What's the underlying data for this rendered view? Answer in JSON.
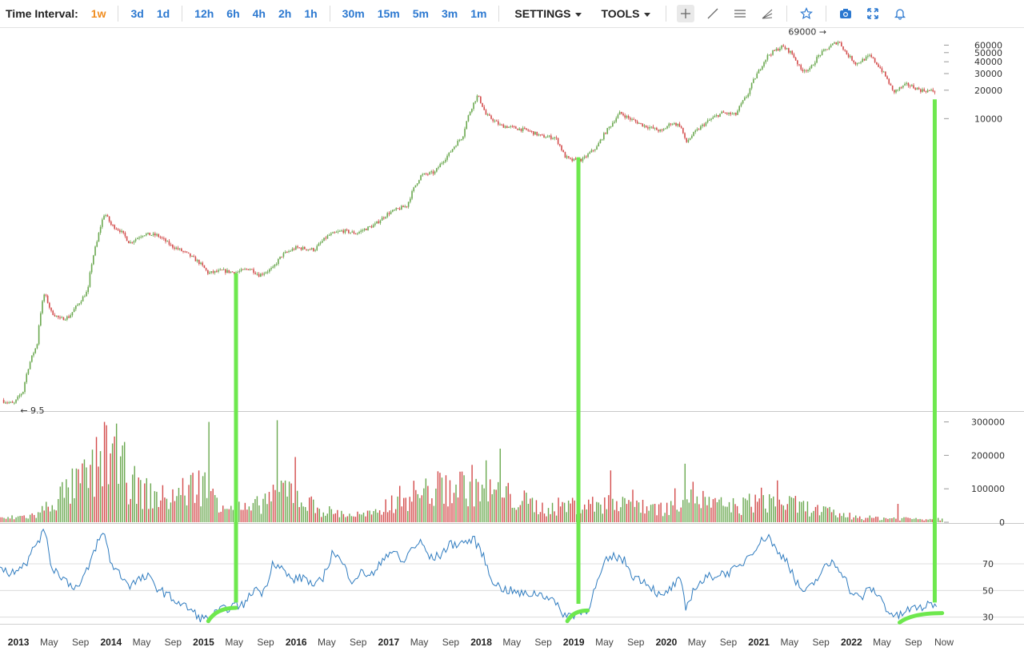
{
  "toolbar": {
    "label": "Time Interval:",
    "intervals": [
      "1w",
      "3d",
      "1d",
      "12h",
      "6h",
      "4h",
      "2h",
      "1h",
      "30m",
      "15m",
      "5m",
      "3m",
      "1m"
    ],
    "active_interval": "1w",
    "settings": "SETTINGS",
    "tools": "TOOLS",
    "tool_icons": [
      "crosshair-icon",
      "trendline-icon",
      "horizontal-lines-icon",
      "fan-icon",
      "star-icon",
      "camera-icon",
      "fullscreen-icon",
      "bell-icon"
    ]
  },
  "colors": {
    "up": "#6aa84f",
    "down": "#d34b4b",
    "rsi": "#2e7bbf",
    "highlight": "#6ee84e",
    "active": "#f08c1e",
    "link": "#2b78d0"
  },
  "chart_data": [
    {
      "type": "candlestick",
      "scale": "log",
      "ylim": [
        8,
        75000
      ],
      "yticks": [
        10000,
        20000,
        30000,
        40000,
        50000,
        60000
      ],
      "ytick_labels": [
        "10000",
        "20000",
        "30000",
        "40000",
        "50000",
        "60000"
      ],
      "annotations": [
        {
          "text": "69000 →",
          "x": 2021.86,
          "y": 69000
        },
        {
          "text": "← 9.5",
          "x": 2012.95,
          "y": 9.5
        }
      ],
      "series_close": [
        [
          2012.8,
          10.5
        ],
        [
          2012.95,
          9.5
        ],
        [
          2013.05,
          13
        ],
        [
          2013.2,
          40
        ],
        [
          2013.28,
          140
        ],
        [
          2013.35,
          90
        ],
        [
          2013.45,
          75
        ],
        [
          2013.55,
          80
        ],
        [
          2013.65,
          110
        ],
        [
          2013.75,
          150
        ],
        [
          2013.85,
          500
        ],
        [
          2013.93,
          1000
        ],
        [
          2014.0,
          750
        ],
        [
          2014.1,
          650
        ],
        [
          2014.2,
          480
        ],
        [
          2014.35,
          600
        ],
        [
          2014.5,
          580
        ],
        [
          2014.65,
          450
        ],
        [
          2014.8,
          380
        ],
        [
          2014.95,
          300
        ],
        [
          2015.05,
          230
        ],
        [
          2015.2,
          245
        ],
        [
          2015.35,
          235
        ],
        [
          2015.5,
          260
        ],
        [
          2015.6,
          220
        ],
        [
          2015.75,
          260
        ],
        [
          2015.85,
          360
        ],
        [
          2016.0,
          430
        ],
        [
          2016.2,
          410
        ],
        [
          2016.35,
          580
        ],
        [
          2016.5,
          650
        ],
        [
          2016.65,
          610
        ],
        [
          2016.85,
          750
        ],
        [
          2017.0,
          1000
        ],
        [
          2017.2,
          1200
        ],
        [
          2017.35,
          2500
        ],
        [
          2017.5,
          2700
        ],
        [
          2017.65,
          4200
        ],
        [
          2017.8,
          6500
        ],
        [
          2017.96,
          17500
        ],
        [
          2018.05,
          11000
        ],
        [
          2018.2,
          8500
        ],
        [
          2018.35,
          8000
        ],
        [
          2018.5,
          7500
        ],
        [
          2018.65,
          6500
        ],
        [
          2018.8,
          6300
        ],
        [
          2018.9,
          4000
        ],
        [
          2018.97,
          3600
        ],
        [
          2019.1,
          3700
        ],
        [
          2019.25,
          5000
        ],
        [
          2019.4,
          8500
        ],
        [
          2019.5,
          11500
        ],
        [
          2019.6,
          10000
        ],
        [
          2019.75,
          8500
        ],
        [
          2019.95,
          7300
        ],
        [
          2020.05,
          9000
        ],
        [
          2020.15,
          8500
        ],
        [
          2020.21,
          5500
        ],
        [
          2020.3,
          7000
        ],
        [
          2020.45,
          9400
        ],
        [
          2020.6,
          11500
        ],
        [
          2020.75,
          11000
        ],
        [
          2020.88,
          18000
        ],
        [
          2021.0,
          32000
        ],
        [
          2021.1,
          47000
        ],
        [
          2021.25,
          58000
        ],
        [
          2021.35,
          50000
        ],
        [
          2021.45,
          33000
        ],
        [
          2021.55,
          33000
        ],
        [
          2021.65,
          47000
        ],
        [
          2021.8,
          61000
        ],
        [
          2021.86,
          66000
        ],
        [
          2021.95,
          48000
        ],
        [
          2022.05,
          38000
        ],
        [
          2022.2,
          46000
        ],
        [
          2022.35,
          30000
        ],
        [
          2022.45,
          19000
        ],
        [
          2022.6,
          23000
        ],
        [
          2022.75,
          20000
        ],
        [
          2022.9,
          19500
        ]
      ]
    },
    {
      "type": "bar",
      "name": "volume",
      "ylim": [
        0,
        330000
      ],
      "yticks": [
        0,
        100000,
        200000,
        300000
      ],
      "ytick_labels": [
        "0",
        "100000",
        "200000",
        "300000"
      ],
      "series_level": [
        [
          2012.8,
          12000
        ],
        [
          2013.2,
          25000
        ],
        [
          2013.4,
          80000
        ],
        [
          2013.8,
          170000
        ],
        [
          2013.95,
          260000
        ],
        [
          2014.1,
          180000
        ],
        [
          2014.3,
          110000
        ],
        [
          2014.6,
          80000
        ],
        [
          2014.8,
          110000
        ],
        [
          2015.0,
          140000
        ],
        [
          2015.2,
          70000
        ],
        [
          2015.5,
          40000
        ],
        [
          2015.75,
          100000
        ],
        [
          2015.9,
          120000
        ],
        [
          2016.1,
          70000
        ],
        [
          2016.3,
          40000
        ],
        [
          2016.6,
          25000
        ],
        [
          2016.9,
          30000
        ],
        [
          2017.0,
          70000
        ],
        [
          2017.3,
          100000
        ],
        [
          2017.6,
          120000
        ],
        [
          2017.9,
          130000
        ],
        [
          2018.1,
          110000
        ],
        [
          2018.4,
          80000
        ],
        [
          2018.7,
          45000
        ],
        [
          2018.9,
          60000
        ],
        [
          2019.2,
          60000
        ],
        [
          2019.5,
          85000
        ],
        [
          2019.8,
          60000
        ],
        [
          2020.0,
          45000
        ],
        [
          2020.2,
          110000
        ],
        [
          2020.5,
          60000
        ],
        [
          2020.8,
          55000
        ],
        [
          2021.0,
          80000
        ],
        [
          2021.3,
          65000
        ],
        [
          2021.6,
          45000
        ],
        [
          2021.9,
          25000
        ],
        [
          2022.2,
          15000
        ],
        [
          2022.5,
          14000
        ],
        [
          2022.9,
          12000
        ]
      ],
      "spikes": [
        [
          2013.95,
          290000
        ],
        [
          2014.05,
          295000
        ],
        [
          2014.15,
          240000
        ],
        [
          2015.05,
          300000
        ],
        [
          2015.8,
          305000
        ],
        [
          2016.0,
          195000
        ],
        [
          2018.2,
          220000
        ],
        [
          2018.05,
          185000
        ],
        [
          2020.2,
          175000
        ],
        [
          2019.4,
          155000
        ],
        [
          2021.2,
          125000
        ],
        [
          2022.5,
          55000
        ]
      ]
    },
    {
      "type": "line",
      "name": "RSI",
      "ylim": [
        25,
        100
      ],
      "yticks": [
        30,
        50,
        70
      ],
      "ytick_labels": [
        "30",
        "50",
        "70"
      ],
      "series": [
        [
          2012.8,
          70
        ],
        [
          2012.9,
          62
        ],
        [
          2013.0,
          68
        ],
        [
          2013.1,
          72
        ],
        [
          2013.2,
          87
        ],
        [
          2013.3,
          95
        ],
        [
          2013.35,
          68
        ],
        [
          2013.45,
          62
        ],
        [
          2013.55,
          55
        ],
        [
          2013.65,
          52
        ],
        [
          2013.75,
          66
        ],
        [
          2013.85,
          86
        ],
        [
          2013.93,
          93
        ],
        [
          2014.0,
          70
        ],
        [
          2014.1,
          62
        ],
        [
          2014.2,
          54
        ],
        [
          2014.3,
          58
        ],
        [
          2014.4,
          60
        ],
        [
          2014.5,
          52
        ],
        [
          2014.6,
          47
        ],
        [
          2014.75,
          40
        ],
        [
          2014.85,
          36
        ],
        [
          2014.95,
          30
        ],
        [
          2015.05,
          28
        ],
        [
          2015.15,
          34
        ],
        [
          2015.3,
          38
        ],
        [
          2015.45,
          40
        ],
        [
          2015.55,
          52
        ],
        [
          2015.65,
          48
        ],
        [
          2015.75,
          72
        ],
        [
          2015.85,
          66
        ],
        [
          2015.95,
          58
        ],
        [
          2016.1,
          60
        ],
        [
          2016.2,
          52
        ],
        [
          2016.3,
          61
        ],
        [
          2016.4,
          80
        ],
        [
          2016.5,
          70
        ],
        [
          2016.6,
          58
        ],
        [
          2016.7,
          63
        ],
        [
          2016.85,
          62
        ],
        [
          2016.95,
          76
        ],
        [
          2017.05,
          80
        ],
        [
          2017.15,
          70
        ],
        [
          2017.25,
          82
        ],
        [
          2017.35,
          86
        ],
        [
          2017.45,
          74
        ],
        [
          2017.55,
          76
        ],
        [
          2017.65,
          84
        ],
        [
          2017.8,
          86
        ],
        [
          2017.92,
          88
        ],
        [
          2018.0,
          80
        ],
        [
          2018.1,
          60
        ],
        [
          2018.2,
          52
        ],
        [
          2018.3,
          50
        ],
        [
          2018.45,
          47
        ],
        [
          2018.6,
          48
        ],
        [
          2018.75,
          45
        ],
        [
          2018.85,
          35
        ],
        [
          2018.93,
          31
        ],
        [
          2019.05,
          33
        ],
        [
          2019.15,
          36
        ],
        [
          2019.25,
          55
        ],
        [
          2019.35,
          72
        ],
        [
          2019.45,
          76
        ],
        [
          2019.55,
          72
        ],
        [
          2019.65,
          60
        ],
        [
          2019.75,
          58
        ],
        [
          2019.85,
          52
        ],
        [
          2019.95,
          44
        ],
        [
          2020.05,
          52
        ],
        [
          2020.15,
          58
        ],
        [
          2020.21,
          36
        ],
        [
          2020.3,
          52
        ],
        [
          2020.45,
          60
        ],
        [
          2020.55,
          62
        ],
        [
          2020.7,
          64
        ],
        [
          2020.8,
          68
        ],
        [
          2020.9,
          78
        ],
        [
          2021.0,
          85
        ],
        [
          2021.1,
          92
        ],
        [
          2021.2,
          78
        ],
        [
          2021.3,
          74
        ],
        [
          2021.4,
          56
        ],
        [
          2021.5,
          48
        ],
        [
          2021.6,
          56
        ],
        [
          2021.7,
          66
        ],
        [
          2021.8,
          72
        ],
        [
          2021.9,
          64
        ],
        [
          2022.0,
          48
        ],
        [
          2022.1,
          44
        ],
        [
          2022.2,
          52
        ],
        [
          2022.3,
          46
        ],
        [
          2022.4,
          34
        ],
        [
          2022.5,
          30
        ],
        [
          2022.6,
          35
        ],
        [
          2022.7,
          37
        ],
        [
          2022.8,
          38
        ],
        [
          2022.9,
          40
        ]
      ]
    }
  ],
  "x_axis": {
    "domain": [
      2012.8,
      2023.0
    ],
    "ticks": [
      {
        "x": 2013.0,
        "label": "2013",
        "year": true
      },
      {
        "x": 2013.33,
        "label": "May",
        "year": false
      },
      {
        "x": 2013.67,
        "label": "Sep",
        "year": false
      },
      {
        "x": 2014.0,
        "label": "2014",
        "year": true
      },
      {
        "x": 2014.33,
        "label": "May",
        "year": false
      },
      {
        "x": 2014.67,
        "label": "Sep",
        "year": false
      },
      {
        "x": 2015.0,
        "label": "2015",
        "year": true
      },
      {
        "x": 2015.33,
        "label": "May",
        "year": false
      },
      {
        "x": 2015.67,
        "label": "Sep",
        "year": false
      },
      {
        "x": 2016.0,
        "label": "2016",
        "year": true
      },
      {
        "x": 2016.33,
        "label": "May",
        "year": false
      },
      {
        "x": 2016.67,
        "label": "Sep",
        "year": false
      },
      {
        "x": 2017.0,
        "label": "2017",
        "year": true
      },
      {
        "x": 2017.33,
        "label": "May",
        "year": false
      },
      {
        "x": 2017.67,
        "label": "Sep",
        "year": false
      },
      {
        "x": 2018.0,
        "label": "2018",
        "year": true
      },
      {
        "x": 2018.33,
        "label": "May",
        "year": false
      },
      {
        "x": 2018.67,
        "label": "Sep",
        "year": false
      },
      {
        "x": 2019.0,
        "label": "2019",
        "year": true
      },
      {
        "x": 2019.33,
        "label": "May",
        "year": false
      },
      {
        "x": 2019.67,
        "label": "Sep",
        "year": false
      },
      {
        "x": 2020.0,
        "label": "2020",
        "year": true
      },
      {
        "x": 2020.33,
        "label": "May",
        "year": false
      },
      {
        "x": 2020.67,
        "label": "Sep",
        "year": false
      },
      {
        "x": 2021.0,
        "label": "2021",
        "year": true
      },
      {
        "x": 2021.33,
        "label": "May",
        "year": false
      },
      {
        "x": 2021.67,
        "label": "Sep",
        "year": false
      },
      {
        "x": 2022.0,
        "label": "2022",
        "year": true
      },
      {
        "x": 2022.33,
        "label": "May",
        "year": false
      },
      {
        "x": 2022.67,
        "label": "Sep",
        "year": false
      },
      {
        "x": 2023.0,
        "label": "Now",
        "year": false
      }
    ]
  },
  "highlights": {
    "vertical_lines": [
      {
        "x": 2015.35,
        "from_price": 230,
        "to_rsi": 41
      },
      {
        "x": 2019.05,
        "from_price": 3900,
        "to_rsi": 40
      },
      {
        "x": 2022.9,
        "from_price": 16000,
        "to_rsi": 41
      }
    ],
    "rsi_arcs": [
      {
        "x": [
          2015.05,
          2015.35
        ],
        "rsi": [
          27,
          37
        ]
      },
      {
        "x": [
          2018.93,
          2019.15
        ],
        "rsi": [
          27,
          35
        ]
      },
      {
        "x": [
          2022.52,
          2022.98
        ],
        "rsi": [
          26,
          33
        ]
      }
    ]
  }
}
